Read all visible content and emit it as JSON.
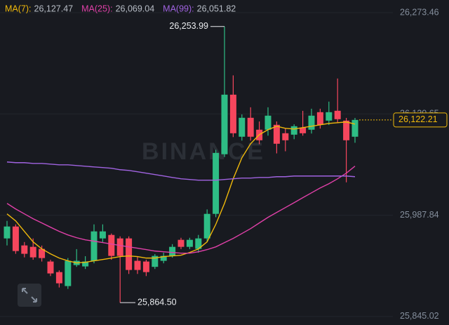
{
  "chart_data": {
    "type": "candlestick",
    "watermark": "BINANCE",
    "up_color": "#2ebd85",
    "down_color": "#f6465d",
    "grid": true,
    "ylim": [
      25833,
      26291.3
    ],
    "yticks": [
      {
        "value": 25845.02,
        "label": "25,845.02"
      },
      {
        "value": 25987.84,
        "label": "25,987.84"
      },
      {
        "value": 26130.65,
        "label": "26,130.65"
      },
      {
        "value": 26273.46,
        "label": "26,273.46"
      }
    ],
    "last_price": {
      "value": 26122.21,
      "label": "26,122.21"
    },
    "high_label": {
      "value": 26253.99,
      "label": "26,253.99"
    },
    "low_label": {
      "value": 25864.5,
      "label": "25,864.50"
    },
    "open": [
      25955.1,
      25971.9,
      25945.2,
      25943.2,
      25940.3,
      25922.5,
      25907.6,
      25887.9,
      25917.5,
      25915.6,
      25923.5,
      25955.1,
      25960.0,
      25955.1,
      25955.1,
      25923.5,
      25922.5,
      25915,
      25923.5,
      25930.4,
      25953.1,
      25943.2,
      25940.3,
      25955.1,
      25989.7,
      26073.8,
      26157.8,
      26098.5,
      26125.2,
      26108.4,
      26108.4,
      26115.3,
      26103.4,
      26101.4,
      26111.3,
      26108.4,
      26133.1,
      26121.2,
      26135.1,
      26121.2,
      26098.5
    ],
    "high": [
      25979.8,
      25974.9,
      25950,
      25955.1,
      25945,
      25925,
      25910,
      25927.4,
      25940,
      25930,
      25974.9,
      25974.9,
      25962,
      25958,
      25958,
      25930,
      25925,
      25933,
      25935,
      25947,
      25956,
      25956,
      25960,
      25996,
      26080,
      26253.99,
      26185,
      26130,
      26140,
      26120,
      26140,
      26120,
      26110,
      26116,
      26135,
      26138,
      26138,
      26148,
      26180.6,
      26125,
      26125
    ],
    "low": [
      25945.2,
      25933.4,
      25928.4,
      25925,
      25922.5,
      25902,
      25885.9,
      25883.9,
      25915,
      25912,
      25920,
      25950,
      25925,
      25864.5,
      25905,
      25905,
      25902,
      25912,
      25920,
      25928,
      25940,
      25940,
      25935,
      25950,
      25985,
      26070,
      26098,
      26093,
      26093,
      26088,
      26100,
      26075,
      26078,
      26095,
      26100,
      26103,
      26110,
      26115,
      26118,
      26034.2,
      26090
    ],
    "close": [
      25971.9,
      25937.3,
      25933.4,
      25928.4,
      25927.4,
      25905.7,
      25891.8,
      25923.5,
      25923.5,
      25922.5,
      25965.0,
      25965.0,
      25930.4,
      25930.4,
      25910.6,
      25910.6,
      25907.6,
      25930.4,
      25930.4,
      25943.2,
      25943.2,
      25953.1,
      25955.1,
      25989.7,
      26075.7,
      26157.8,
      26103.4,
      26125.2,
      26098.5,
      26093.5,
      26128.2,
      26088.6,
      26093.5,
      26113.3,
      26103.4,
      26128.2,
      26115.3,
      26133.1,
      26123.2,
      26093.5,
      26122.21
    ],
    "series": [
      {
        "name": "MA(7):",
        "color": "#f0b90b",
        "last": {
          "value": 26127.47,
          "label": "26,127.47"
        },
        "values": [
          25989.7,
          25979.8,
          25965.0,
          25950.2,
          25940.3,
          25933.4,
          25927.4,
          25923.5,
          25920.5,
          25921.5,
          25923.5,
          25925.4,
          25927.4,
          25929.4,
          25930.4,
          25929.4,
          25927.4,
          25927.4,
          25929.4,
          25930.4,
          25931.4,
          25935.3,
          25940.3,
          25950.2,
          25974.9,
          26004.5,
          26039.2,
          26068.8,
          26088.6,
          26101.4,
          26108.4,
          26113.3,
          26110.3,
          26109.4,
          26111.3,
          26113.3,
          26115.3,
          26117.3,
          26118.3,
          26119.3,
          26116.3
        ]
      },
      {
        "name": "MA(25):",
        "color": "#e040a8",
        "last": {
          "value": 26069.04,
          "label": "26,069.04"
        },
        "values": [
          26004.5,
          25996.6,
          25989.7,
          25982.8,
          25976.9,
          25970.9,
          25965.0,
          25960.0,
          25956.1,
          25953.1,
          25951.2,
          25949.2,
          25947.2,
          25945.2,
          25943.2,
          25941.3,
          25939.3,
          25937.3,
          25936.3,
          25935.3,
          25934.3,
          25934.3,
          25936.3,
          25939.3,
          25943.2,
          25949.2,
          25955.1,
          25962.0,
          25968.9,
          25976.9,
          25984.8,
          25991.7,
          25998.6,
          26005.5,
          26012.5,
          26019.4,
          26026.3,
          26032.2,
          26039.2,
          26047.1,
          26057.0
        ]
      },
      {
        "name": "MA(99):",
        "color": "#a063e0",
        "last": {
          "value": 26051.82,
          "label": "26,051.82"
        },
        "values": [
          26062.9,
          26061.9,
          26061.9,
          26060.9,
          26060.9,
          26059.9,
          26058.9,
          26058.9,
          26057.9,
          26056.9,
          26055.9,
          26055.0,
          26054.0,
          26052.0,
          26051.0,
          26049.1,
          26047.1,
          26045.1,
          26043.1,
          26041.1,
          26039.2,
          26038.2,
          26037.2,
          26037.2,
          26037.2,
          26038.2,
          26039.2,
          26040.2,
          26040.2,
          26041.1,
          26041.1,
          26042.1,
          26042.1,
          26043.1,
          26043.1,
          26043.1,
          26043.1,
          26043.1,
          26043.1,
          26043.1,
          26042.1
        ]
      }
    ]
  }
}
